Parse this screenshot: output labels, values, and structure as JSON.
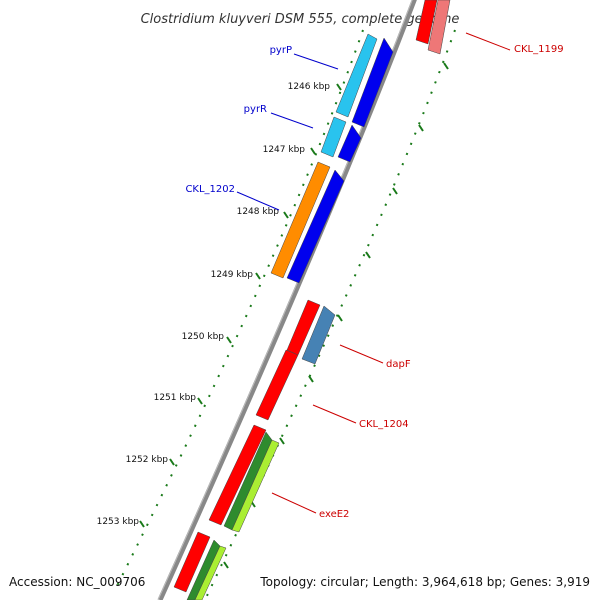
{
  "title": "Clostridium kluyveri DSM 555, complete genome",
  "footer": {
    "accession": "Accession: NC_009706",
    "summary": "Topology: circular; Length: 3,964,618 bp; Genes: 3,919"
  },
  "ticks": [
    "1246 kbp",
    "1247 kbp",
    "1248 kbp",
    "1249 kbp",
    "1250 kbp",
    "1251 kbp",
    "1252 kbp",
    "1253 kbp"
  ],
  "gene_labels": [
    {
      "text": "pyrP",
      "color": "#0000cc"
    },
    {
      "text": "pyrR",
      "color": "#0000cc"
    },
    {
      "text": "CKL_1202",
      "color": "#0000cc"
    },
    {
      "text": "CKL_1199",
      "color": "#cc0000"
    },
    {
      "text": "dapF",
      "color": "#cc0000"
    },
    {
      "text": "CKL_1204",
      "color": "#cc0000"
    },
    {
      "text": "exeE2",
      "color": "#cc0000"
    }
  ],
  "colors": {
    "backbone": "#888888",
    "tick": "#1a7a1a",
    "forward_gene": "#ff0000",
    "reverse_gene": "#0000ee",
    "cds_light_blue": "#29c3ee",
    "cds_orange": "#ff8c00",
    "cds_steel": "#4682b4",
    "cds_dark_green": "#2e8b2e",
    "cds_light_green": "#aaee33"
  }
}
